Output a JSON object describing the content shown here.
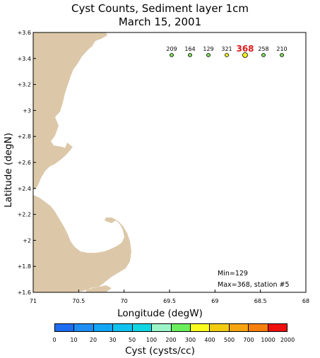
{
  "title": {
    "line1": "Cyst Counts, Sediment layer 1cm",
    "line2": "March 15, 2001"
  },
  "axes": {
    "xlabel": "Longitude (degW)",
    "ylabel": "Latitude (degN)",
    "xticks": [
      "71",
      "70.5",
      "70",
      "69.5",
      "69",
      "68.5",
      "68"
    ],
    "yticks": [
      "+3.6",
      "+3.4",
      "+3.2",
      "+3",
      "+2.8",
      "+2.6",
      "+2.4",
      "+2.2",
      "+2",
      "+1.8",
      "+1.6"
    ]
  },
  "stations": [
    {
      "label": "209",
      "color": "#7ddc5a",
      "highlight": false
    },
    {
      "label": "164",
      "color": "#7ddc5a",
      "highlight": false
    },
    {
      "label": "129",
      "color": "#7ddc5a",
      "highlight": false
    },
    {
      "label": "321",
      "color": "#f2ef22",
      "highlight": false
    },
    {
      "label": "368",
      "color": "#f2ef22",
      "highlight": true
    },
    {
      "label": "258",
      "color": "#7ddc5a",
      "highlight": false
    },
    {
      "label": "210",
      "color": "#7ddc5a",
      "highlight": false
    }
  ],
  "stats": {
    "min": "Min=129",
    "max": "Max=368, station #5"
  },
  "colorbar": {
    "label": "Cyst (cysts/cc)",
    "ticks": [
      "0",
      "10",
      "20",
      "30",
      "50",
      "100",
      "200",
      "300",
      "400",
      "500",
      "700",
      "1000",
      "2000"
    ],
    "colors": [
      "#1e6cf0",
      "#1e8ef5",
      "#12a6f5",
      "#0fc2ef",
      "#10d6e4",
      "#9cf5c8",
      "#6cef5c",
      "#fbfb1e",
      "#f2cc11",
      "#f7a411",
      "#f77f0c",
      "#f00f0f"
    ]
  },
  "colors": {
    "land": "#dcc8a8",
    "highlight_label": "#dd1a1a"
  }
}
